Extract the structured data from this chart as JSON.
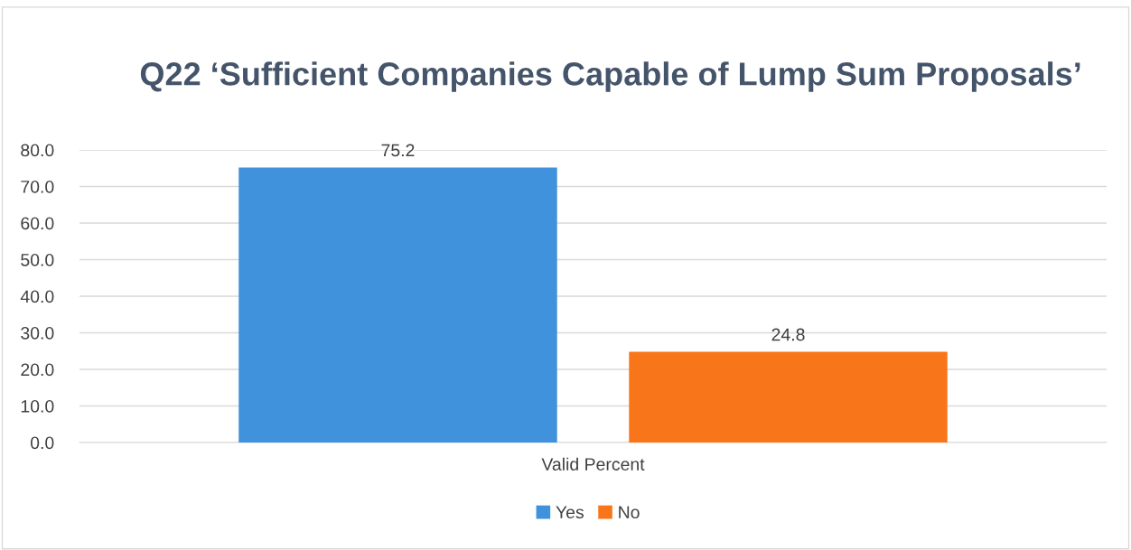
{
  "chart_data": {
    "type": "bar",
    "title": "Q22 ‘Sufficient Companies Capable of Lump Sum Proposals’",
    "categories": [
      "Valid Percent"
    ],
    "series": [
      {
        "name": "Yes",
        "color": "#4192dc",
        "values": [
          75.2
        ]
      },
      {
        "name": "No",
        "color": "#f9751a",
        "values": [
          24.8
        ]
      }
    ],
    "ylim": [
      0,
      80
    ],
    "yticks": [
      {
        "value": 0,
        "label": "0.0"
      },
      {
        "value": 10,
        "label": "10.0"
      },
      {
        "value": 20,
        "label": "20.0"
      },
      {
        "value": 30,
        "label": "30.0"
      },
      {
        "value": 40,
        "label": "40.0"
      },
      {
        "value": 50,
        "label": "50.0"
      },
      {
        "value": 60,
        "label": "60.0"
      },
      {
        "value": 70,
        "label": "70.0"
      },
      {
        "value": 80,
        "label": "80.0"
      }
    ],
    "grid": "y",
    "legend": "bottom",
    "data_labels": true
  }
}
